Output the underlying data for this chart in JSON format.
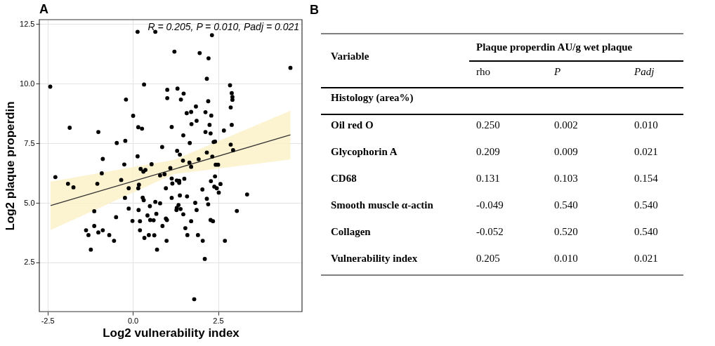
{
  "chart_data": [
    {
      "type": "scatter",
      "title": "A",
      "xlabel": "Log2 vulnerability index",
      "ylabel": "Log2 plaque properdin",
      "annotations": [
        "R = 0.205, P = 0.010, Padj = 0.021"
      ],
      "xlim": [
        -2.74,
        4.96
      ],
      "ylim": [
        0.44,
        12.68
      ],
      "xticks": [
        -2.5,
        {
          "value": 0,
          "label": "0.0"
        },
        2.5
      ],
      "yticks": [
        2.5,
        {
          "value": 5,
          "label": "5.0"
        },
        7.5,
        {
          "value": 10,
          "label": "10.0"
        },
        12.5
      ],
      "grid": true,
      "marker": "circle",
      "line_style": "solid",
      "series": [
        {
          "type": "scatter",
          "color": "#000000",
          "x": [
            -2.42,
            0.14,
            0.66,
            2.32,
            1.22,
            1.96,
            2.22,
            4.62,
            2.17,
            0.33,
            2.85,
            1.01,
            1.31,
            1.49,
            2.9,
            2.92,
            2.92,
            -0.2,
            1.01,
            1.41,
            2.21,
            1.85,
            2.87,
            1.58,
            1.71,
            2.13,
            2.3,
            0.01,
            -1.85,
            0.16,
            0.27,
            -1.01,
            1.14,
            1.72,
            1.87,
            2.25,
            2.13,
            2.28,
            2.67,
            2.9,
            -0.47,
            -0.22,
            1.48,
            1.67,
            0.86,
            2.37,
            2.41,
            2.87,
            2.94,
            1.3,
            0.14,
            1.38,
            2.17,
            -0.88,
            1.47,
            1.93,
            2.33,
            1.66,
            -0.25,
            0.55,
            2.43,
            2.5,
            0.23,
            0.37,
            0.31,
            1.1,
            1.71,
            -0.91,
            -2.27,
            0.8,
            0.93,
            1.14,
            1.51,
            2.41,
            -0.34,
            1.29,
            1.36,
            2.29,
            1.16,
            1.36,
            -1.9,
            -1.04,
            2.57,
            -1.74,
            0.18,
            -0.12,
            0.16,
            0.97,
            2.39,
            2.46,
            2.04,
            2.52,
            3.35,
            -0.23,
            1.14,
            1.59,
            1.38,
            0.29,
            0.32,
            2.17,
            0.66,
            0.8,
            1.83,
            2.21,
            0.5,
            1.34,
            1.29,
            1.4,
            1.28,
            -0.12,
            0.17,
            1.87,
            -1.13,
            3.05,
            0.69,
            1.48,
            0.43,
            -0.49,
            0.97,
            -0.01,
            0.21,
            0.51,
            0.61,
            1.0,
            1.71,
            2.28,
            2.35,
            -1.37,
            -1.13,
            -1.3,
            -1.01,
            -0.88,
            -0.69,
            -0.55,
            -1.23,
            0.21,
            0.34,
            0.47,
            0.63,
            0.71,
            0.87,
            0.99,
            1.54,
            1.6,
            1.91,
            2.05,
            2.7,
            2.11,
            1.8
          ],
          "values": [
            9.87,
            12.17,
            12.17,
            12.03,
            11.34,
            11.28,
            11.06,
            10.66,
            10.2,
            9.96,
            9.93,
            9.74,
            9.79,
            9.58,
            9.6,
            9.44,
            9.32,
            9.33,
            9.39,
            9.33,
            9.26,
            9.04,
            9.0,
            8.76,
            8.81,
            8.8,
            8.66,
            8.65,
            8.15,
            8.17,
            8.11,
            7.97,
            8.18,
            8.3,
            8.44,
            8.27,
            7.97,
            7.91,
            8.03,
            8.27,
            7.51,
            7.6,
            7.83,
            7.51,
            7.34,
            7.55,
            7.57,
            7.44,
            7.21,
            7.18,
            6.95,
            7.02,
            7.11,
            6.84,
            6.77,
            6.83,
            6.94,
            6.69,
            6.61,
            6.62,
            6.6,
            6.6,
            6.42,
            6.38,
            6.31,
            6.46,
            6.51,
            6.24,
            6.08,
            6.15,
            6.2,
            6.02,
            6.01,
            6.11,
            5.96,
            5.94,
            5.92,
            5.91,
            5.81,
            5.84,
            5.8,
            5.8,
            5.79,
            5.65,
            5.76,
            5.61,
            5.61,
            5.61,
            5.68,
            5.61,
            5.56,
            5.43,
            5.35,
            5.21,
            5.21,
            5.27,
            5.31,
            5.22,
            5.11,
            5.17,
            5.04,
            4.98,
            5.0,
            4.94,
            4.86,
            4.91,
            4.79,
            4.74,
            4.7,
            4.76,
            4.7,
            4.7,
            4.65,
            4.66,
            4.54,
            4.52,
            4.47,
            4.4,
            4.34,
            4.24,
            4.23,
            4.28,
            4.27,
            4.28,
            4.23,
            4.28,
            4.23,
            3.85,
            4.03,
            3.65,
            3.76,
            3.85,
            3.65,
            3.41,
            3.04,
            3.85,
            3.53,
            3.65,
            3.64,
            3.04,
            4.03,
            3.41,
            3.94,
            3.65,
            3.65,
            3.41,
            3.41,
            2.65,
            0.96
          ]
        },
        {
          "type": "line",
          "marker": "none",
          "color": "#333333",
          "x": [
            -2.41,
            1.21,
            4.62
          ],
          "values": [
            4.89,
            6.41,
            7.85
          ],
          "lower": [
            3.86,
            6.21,
            6.82
          ],
          "upper": [
            5.89,
            6.8,
            8.86
          ]
        }
      ]
    },
    {
      "type": "other",
      "title": "B",
      "annotations": [
        "Variable",
        "Plaque properdin AU/g wet plaque",
        "rho",
        "P",
        "Padj",
        "Histology (area%)",
        "Oil red O",
        "0.250",
        "0.002",
        "0.010",
        "Glycophorin A",
        "0.209",
        "0.009",
        "0.021",
        "CD68",
        "0.131",
        "0.103",
        "0.154",
        "Smooth muscle α-actin",
        "-0.049",
        "0.540",
        "0.540",
        "Collagen",
        "-0.052",
        "0.520",
        "0.540",
        "Vulnerability index",
        "0.205",
        "0.010",
        "0.021"
      ]
    }
  ]
}
